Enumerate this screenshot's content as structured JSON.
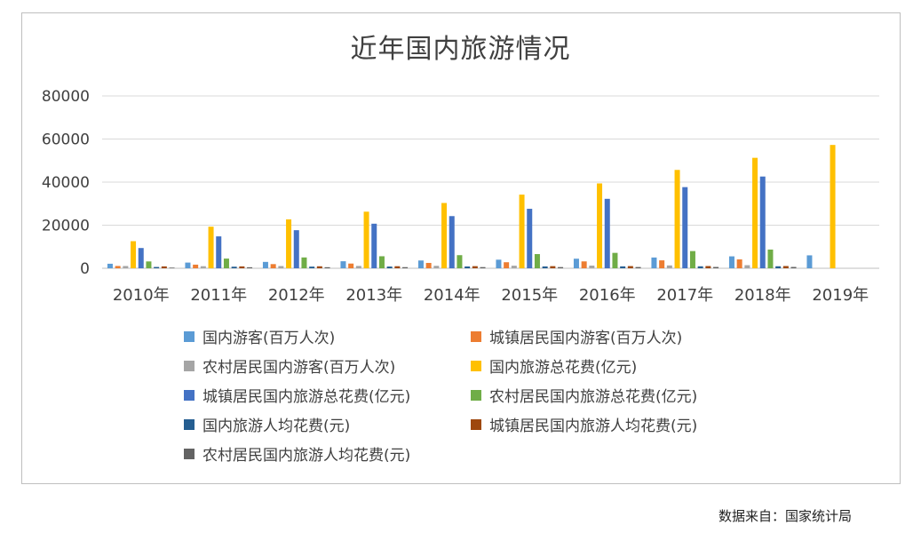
{
  "source_note": "数据来自：国家统计局",
  "chart_data": {
    "type": "bar",
    "title": "近年国内旅游情况",
    "categories": [
      "2010年",
      "2011年",
      "2012年",
      "2013年",
      "2014年",
      "2015年",
      "2016年",
      "2017年",
      "2018年",
      "2019年"
    ],
    "ylim": [
      0,
      80000
    ],
    "yticks": [
      "0",
      "20000",
      "40000",
      "60000",
      "80000"
    ],
    "grid": true,
    "legend_position": "bottom",
    "series": [
      {
        "name": "国内游客(百万人次)",
        "color": "#5b9bd5",
        "values": [
          2103,
          2641,
          2957,
          3262,
          3611,
          3990,
          4440,
          5001,
          5539,
          6006
        ]
      },
      {
        "name": "城镇居民国内游客(百万人次)",
        "color": "#ed7d31",
        "values": [
          1065,
          1687,
          1933,
          2186,
          2483,
          2802,
          3195,
          3677,
          4119,
          null
        ]
      },
      {
        "name": "农村居民国内游客(百万人次)",
        "color": "#a5a5a5",
        "values": [
          1038,
          954,
          1024,
          1076,
          1128,
          1188,
          1240,
          1324,
          1420,
          null
        ]
      },
      {
        "name": "国内旅游总花费(亿元)",
        "color": "#ffc000",
        "values": [
          12580,
          19305,
          22706,
          26276,
          30312,
          34195,
          39390,
          45661,
          51278,
          57251
        ]
      },
      {
        "name": "城镇居民国内旅游总花费(亿元)",
        "color": "#4472c4",
        "values": [
          9404,
          14809,
          17678,
          20692,
          24220,
          27611,
          32241,
          37673,
          42590,
          null
        ]
      },
      {
        "name": "农村居民国内旅游总花费(亿元)",
        "color": "#70ad47",
        "values": [
          3176,
          4496,
          5028,
          5584,
          6092,
          6584,
          7149,
          7988,
          8688,
          null
        ]
      },
      {
        "name": "国内旅游人均花费(元)",
        "color": "#255e91",
        "values": [
          598,
          731,
          768,
          805,
          840,
          857,
          888,
          913,
          926,
          null
        ]
      },
      {
        "name": "城镇居民国内旅游人均花费(元)",
        "color": "#9e480e",
        "values": [
          883,
          878,
          915,
          946,
          975,
          985,
          1009,
          1025,
          1034,
          null
        ]
      },
      {
        "name": "农村居民国内旅游人均花费(元)",
        "color": "#636363",
        "values": [
          306,
          471,
          491,
          519,
          540,
          554,
          576,
          603,
          612,
          null
        ]
      }
    ]
  }
}
